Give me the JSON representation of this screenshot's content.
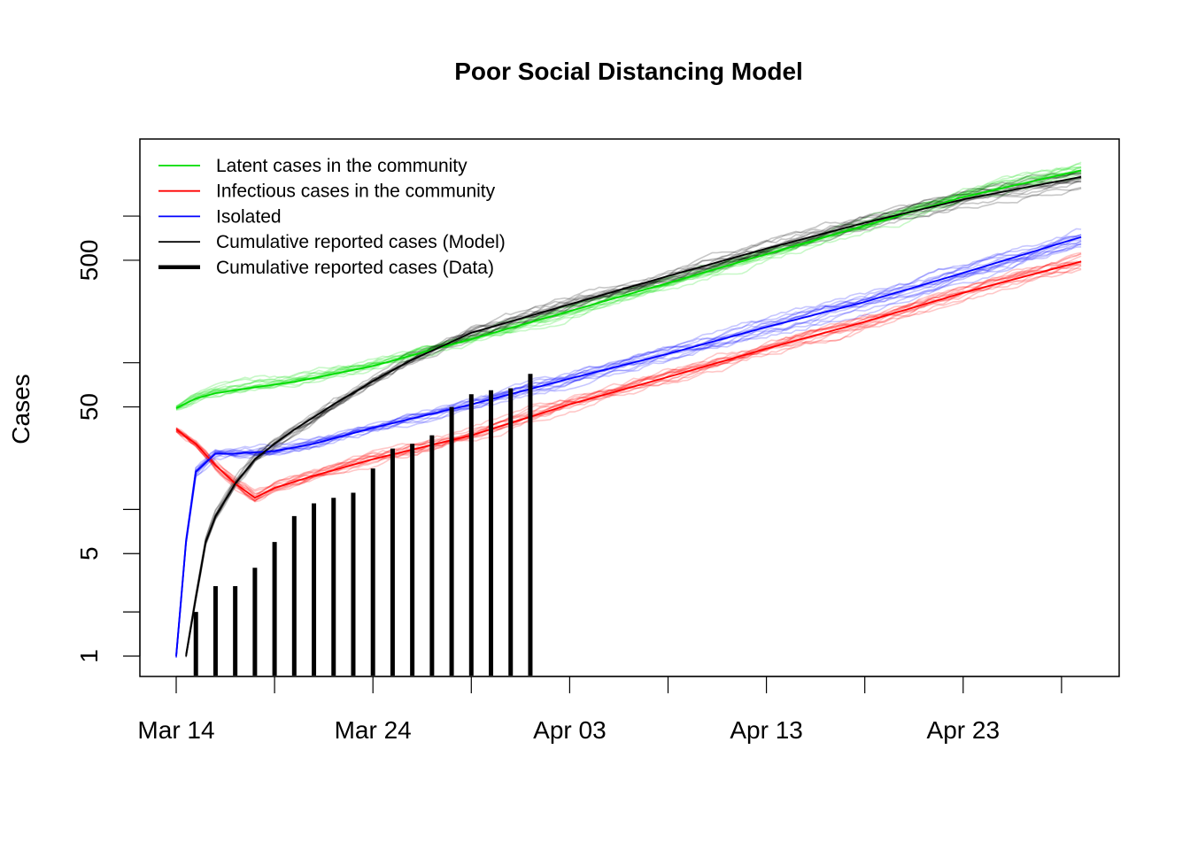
{
  "chart_data": {
    "type": "line",
    "title": "Poor Social Distancing Model",
    "xlabel": "",
    "ylabel": "Cases",
    "y_scale": "log",
    "xlim": [
      "2020-03-13",
      "2020-04-30"
    ],
    "ylim": [
      0.8,
      2100
    ],
    "x_ticks": [
      "Mar 14",
      "Mar 19",
      "Mar 24",
      "Mar 29",
      "Apr 03",
      "Apr 08",
      "Apr 13",
      "Apr 18",
      "Apr 23",
      "Apr 28"
    ],
    "x_tick_labels": [
      "Mar 14",
      "",
      "Mar 24",
      "",
      "Apr 03",
      "",
      "Apr 13",
      "",
      "Apr 23",
      ""
    ],
    "y_ticks": [
      1,
      2,
      5,
      10,
      50,
      100,
      500,
      1000
    ],
    "y_tick_labels": [
      "1",
      "",
      "5",
      "",
      "50",
      "",
      "500",
      ""
    ],
    "legend_position": "top-left",
    "grid": false,
    "series": [
      {
        "name": "Latent cases in the community",
        "color": "#00dd00",
        "x": [
          "2020-03-14",
          "2020-03-15",
          "2020-03-16",
          "2020-03-18",
          "2020-03-20",
          "2020-03-24",
          "2020-03-29",
          "2020-04-03",
          "2020-04-08",
          "2020-04-13",
          "2020-04-18",
          "2020-04-23",
          "2020-04-29"
        ],
        "values": [
          49,
          57,
          62,
          68,
          74,
          95,
          145,
          225,
          350,
          550,
          860,
          1350,
          2050
        ]
      },
      {
        "name": "Infectious cases in the community",
        "color": "#ff0000",
        "x": [
          "2020-03-14",
          "2020-03-15",
          "2020-03-16",
          "2020-03-17",
          "2020-03-18",
          "2020-03-19",
          "2020-03-21",
          "2020-03-24",
          "2020-03-29",
          "2020-04-03",
          "2020-04-08",
          "2020-04-13",
          "2020-04-18",
          "2020-04-23",
          "2020-04-29"
        ],
        "values": [
          35,
          28,
          20,
          15,
          12,
          14,
          17,
          22,
          32,
          52,
          80,
          125,
          190,
          300,
          490
        ]
      },
      {
        "name": "Isolated",
        "color": "#0000ff",
        "x": [
          "2020-03-14",
          "2020-03-14T12:00",
          "2020-03-15",
          "2020-03-16",
          "2020-03-17",
          "2020-03-19",
          "2020-03-21",
          "2020-03-24",
          "2020-03-29",
          "2020-04-03",
          "2020-04-08",
          "2020-04-13",
          "2020-04-18",
          "2020-04-23",
          "2020-04-29"
        ],
        "values": [
          1,
          6,
          18,
          24,
          24,
          25,
          28,
          36,
          52,
          78,
          115,
          175,
          260,
          410,
          720
        ]
      },
      {
        "name": "Cumulative reported cases (Model)",
        "color": "#000000",
        "x": [
          "2020-03-14T12:00",
          "2020-03-15",
          "2020-03-15T12:00",
          "2020-03-16",
          "2020-03-17",
          "2020-03-18",
          "2020-03-19",
          "2020-03-20",
          "2020-03-22",
          "2020-03-24",
          "2020-03-26",
          "2020-03-29",
          "2020-04-03",
          "2020-04-08",
          "2020-04-13",
          "2020-04-18",
          "2020-04-23",
          "2020-04-29"
        ],
        "values": [
          1,
          2.5,
          6,
          9,
          15,
          22,
          28,
          35,
          52,
          75,
          105,
          160,
          250,
          390,
          600,
          900,
          1300,
          1850
        ]
      },
      {
        "name": "Cumulative reported cases (Data)",
        "color": "#000000",
        "kind": "bar",
        "x": [
          "2020-03-15",
          "2020-03-16",
          "2020-03-17",
          "2020-03-18",
          "2020-03-19",
          "2020-03-20",
          "2020-03-21",
          "2020-03-22",
          "2020-03-23",
          "2020-03-24",
          "2020-03-25",
          "2020-03-26",
          "2020-03-27",
          "2020-03-28",
          "2020-03-29",
          "2020-03-30",
          "2020-03-31",
          "2020-04-01"
        ],
        "values": [
          2,
          3,
          3,
          4,
          6,
          9,
          11,
          12,
          13,
          19,
          26,
          28,
          32,
          50,
          61,
          65,
          67,
          84
        ]
      }
    ]
  }
}
